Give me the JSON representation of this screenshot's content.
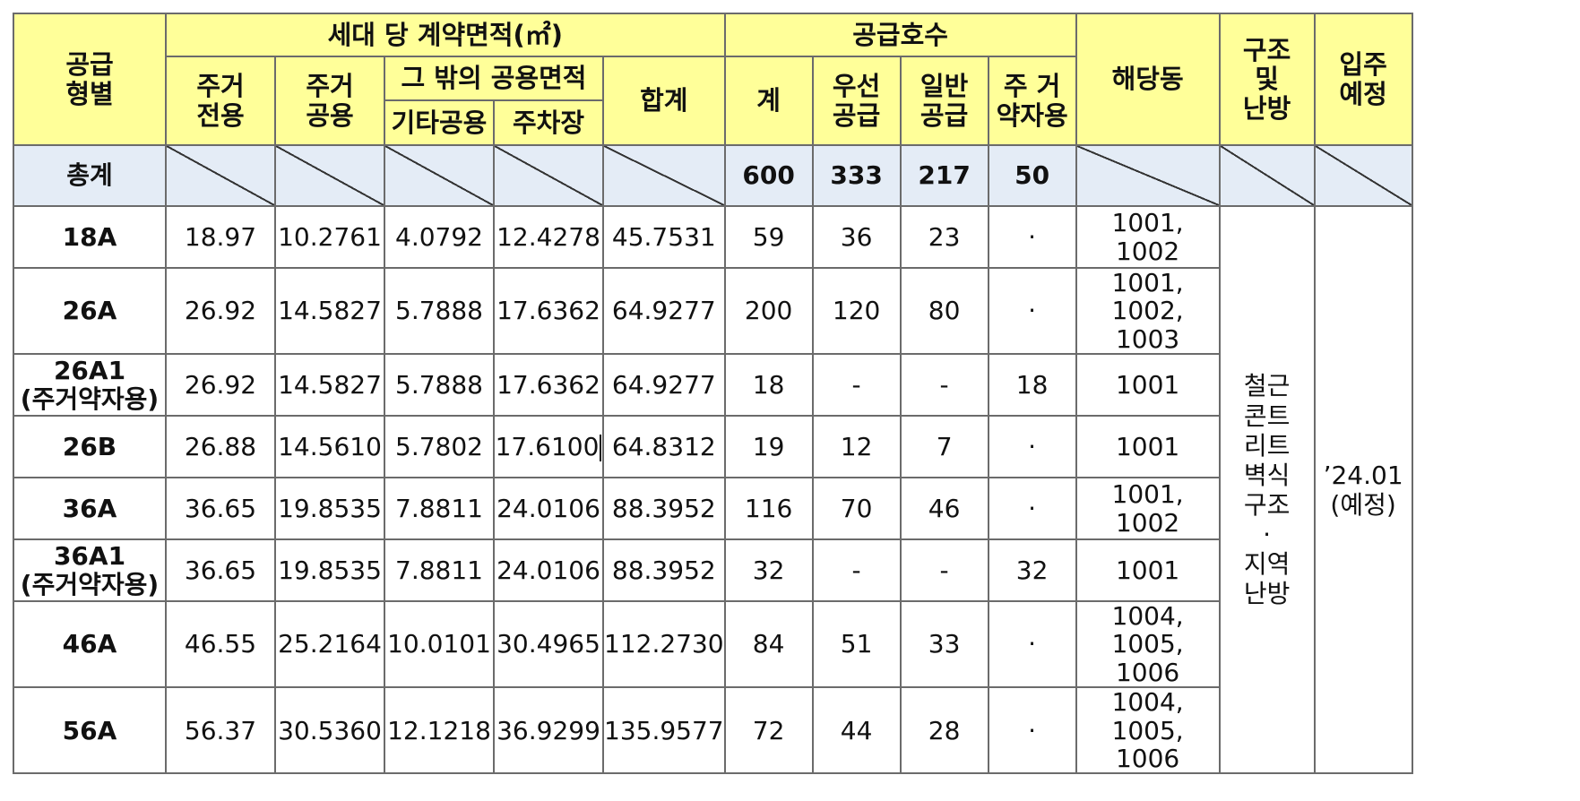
{
  "headers": {
    "type": "공급\n형별",
    "area_group": "세대 당 계약면적(㎡)",
    "resid_exclusive": "주거\n전용",
    "resid_common": "주거\n공용",
    "other_common_group": "그 밖의 공용면적",
    "misc_common": "기타공용",
    "parking": "주차장",
    "area_total": "합계",
    "supply_group": "공급호수",
    "supply_total": "계",
    "priority": "우선\n공급",
    "general": "일반\n공급",
    "disabled": "주 거\n약자용",
    "buildings": "해당동",
    "structure": "구조\n및\n난방",
    "move_in": "입주\n예정"
  },
  "total": {
    "label": "총계",
    "supply_total": "600",
    "priority": "333",
    "general": "217",
    "disabled": "50"
  },
  "rows": [
    {
      "type": "18A",
      "excl": "18.97",
      "common": "10.2761",
      "misc": "4.0792",
      "park": "12.4278",
      "sum": "45.7531",
      "tot": "59",
      "prio": "36",
      "gen": "23",
      "dis": "·",
      "bldg": "1001, 1002"
    },
    {
      "type": "26A",
      "excl": "26.92",
      "common": "14.5827",
      "misc": "5.7888",
      "park": "17.6362",
      "sum": "64.9277",
      "tot": "200",
      "prio": "120",
      "gen": "80",
      "dis": "·",
      "bldg": "1001, 1002,\n1003"
    },
    {
      "type": "26A1\n(주거약자용)",
      "excl": "26.92",
      "common": "14.5827",
      "misc": "5.7888",
      "park": "17.6362",
      "sum": "64.9277",
      "tot": "18",
      "prio": "-",
      "gen": "-",
      "dis": "18",
      "bldg": "1001"
    },
    {
      "type": "26B",
      "excl": "26.88",
      "common": "14.5610",
      "misc": "5.7802",
      "park": "17.6100",
      "sum": "64.8312",
      "tot": "19",
      "prio": "12",
      "gen": "7",
      "dis": "·",
      "bldg": "1001"
    },
    {
      "type": "36A",
      "excl": "36.65",
      "common": "19.8535",
      "misc": "7.8811",
      "park": "24.0106",
      "sum": "88.3952",
      "tot": "116",
      "prio": "70",
      "gen": "46",
      "dis": "·",
      "bldg": "1001, 1002"
    },
    {
      "type": "36A1\n(주거약자용)",
      "excl": "36.65",
      "common": "19.8535",
      "misc": "7.8811",
      "park": "24.0106",
      "sum": "88.3952",
      "tot": "32",
      "prio": "-",
      "gen": "-",
      "dis": "32",
      "bldg": "1001"
    },
    {
      "type": "46A",
      "excl": "46.55",
      "common": "25.2164",
      "misc": "10.0101",
      "park": "30.4965",
      "sum": "112.2730",
      "tot": "84",
      "prio": "51",
      "gen": "33",
      "dis": "·",
      "bldg": "1004, 1005,\n1006"
    },
    {
      "type": "56A",
      "excl": "56.37",
      "common": "30.5360",
      "misc": "12.1218",
      "park": "36.9299",
      "sum": "135.9577",
      "tot": "72",
      "prio": "44",
      "gen": "28",
      "dis": "·",
      "bldg": "1004, 1005,\n1006"
    }
  ],
  "structure_value": "철근\n콘트\n리트\n벽식\n구조\n·\n지역\n난방",
  "move_in_value": "’24.01\n(예정)"
}
